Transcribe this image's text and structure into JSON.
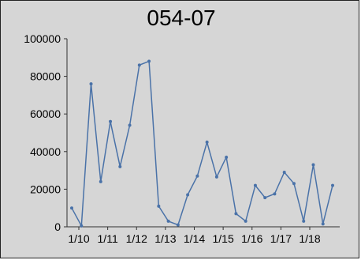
{
  "chart_data": {
    "type": "line",
    "title": "054-07",
    "xlabel": "",
    "ylabel": "",
    "ylim": [
      0,
      100000
    ],
    "yticks": [
      "100000",
      "80000",
      "60000",
      "40000",
      "20000",
      "0"
    ],
    "x_tick_labels": [
      "1/10",
      "1/11",
      "1/12",
      "1/13",
      "1/14",
      "1/15",
      "1/16",
      "1/17",
      "1/18"
    ],
    "grid": false,
    "legend": "none",
    "series": [
      {
        "color": "#4a72a8",
        "values": [
          10000,
          500,
          76000,
          24000,
          56000,
          32000,
          54000,
          86000,
          88000,
          11000,
          3000,
          1000,
          17000,
          27000,
          45000,
          26500,
          37000,
          7000,
          3000,
          22000,
          15500,
          17500,
          29000,
          23000,
          3000,
          33000,
          1500,
          22000
        ]
      }
    ]
  }
}
